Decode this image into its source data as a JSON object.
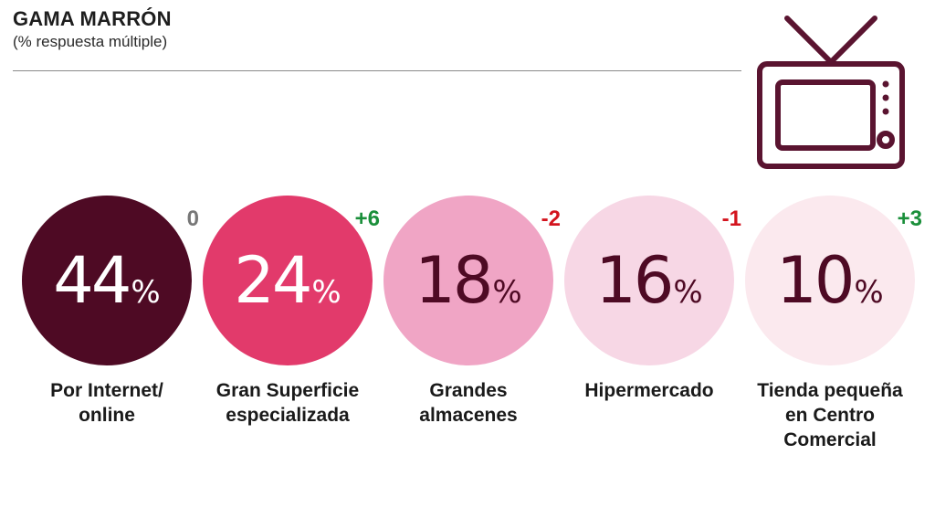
{
  "header": {
    "title": "GAMA MARRÓN",
    "subtitle": "(% respuesta múltiple)"
  },
  "icon": "tv-icon",
  "colors": {
    "c1": "#4e0a24",
    "c2": "#e23a6b",
    "c3": "#f0a5c5",
    "c4": "#f7d7e5",
    "c5": "#fbe9ee",
    "positive": "#1a8f3a",
    "negative": "#d3141e",
    "neutral": "#777777",
    "icon": "#5a1430"
  },
  "chart_data": {
    "type": "bubble-list",
    "title": "GAMA MARRÓN",
    "subtitle": "(% respuesta múltiple)",
    "unit": "%",
    "items": [
      {
        "label": "Por Internet/\nonline",
        "value": "44",
        "change": "0"
      },
      {
        "label": "Gran Superficie\nespecializada",
        "value": "24",
        "change": "+6"
      },
      {
        "label": "Grandes\nalmacenes",
        "value": "18",
        "change": "-2"
      },
      {
        "label": "Hipermercado",
        "value": "16",
        "change": "-1"
      },
      {
        "label": "Tienda pequeña\nen Centro\nComercial",
        "value": "10",
        "change": "+3"
      }
    ]
  }
}
